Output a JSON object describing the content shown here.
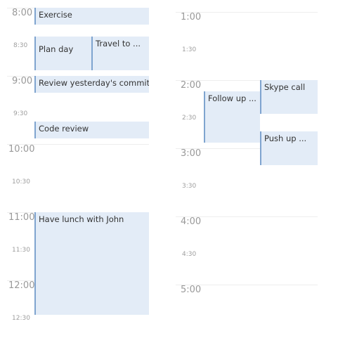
{
  "columns": [
    {
      "times": [
        {
          "label": "8:00",
          "kind": "hour"
        },
        {
          "label": "8:30",
          "kind": "half"
        },
        {
          "label": "9:00",
          "kind": "hour"
        },
        {
          "label": "9:30",
          "kind": "half"
        },
        {
          "label": "10:00",
          "kind": "hour"
        },
        {
          "label": "10:30",
          "kind": "half"
        },
        {
          "label": "11:00",
          "kind": "hour"
        },
        {
          "label": "11:30",
          "kind": "half"
        },
        {
          "label": "12:00",
          "kind": "hour"
        },
        {
          "label": "12:30",
          "kind": "half"
        }
      ],
      "events": [
        {
          "title": "Exercise"
        },
        {
          "title": "Plan day"
        },
        {
          "title": "Travel to ..."
        },
        {
          "title": "Review yesterday's commits"
        },
        {
          "title": "Code review"
        },
        {
          "title": "Have lunch with John"
        }
      ]
    },
    {
      "times": [
        {
          "label": "1:00",
          "kind": "hour"
        },
        {
          "label": "1:30",
          "kind": "half"
        },
        {
          "label": "2:00",
          "kind": "hour"
        },
        {
          "label": "2:30",
          "kind": "half"
        },
        {
          "label": "3:00",
          "kind": "hour"
        },
        {
          "label": "3:30",
          "kind": "half"
        },
        {
          "label": "4:00",
          "kind": "hour"
        },
        {
          "label": "4:30",
          "kind": "half"
        },
        {
          "label": "5:00",
          "kind": "hour"
        }
      ],
      "events": [
        {
          "title": "Skype call"
        },
        {
          "title": "Follow up ..."
        },
        {
          "title": "Push up ..."
        }
      ]
    }
  ],
  "colors": {
    "event_background": "#e3ecf7",
    "event_accent": "#7fa4cf",
    "time_label": "#9e9e9e",
    "grid_line": "#eeeeee"
  }
}
